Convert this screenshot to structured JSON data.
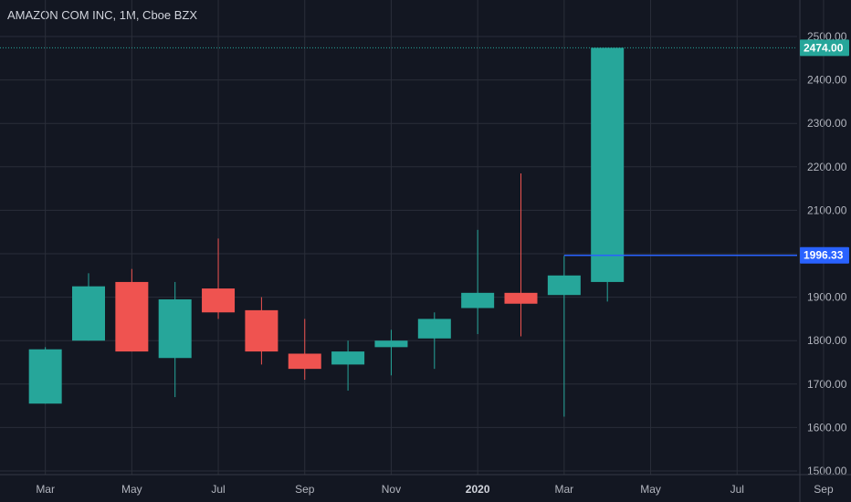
{
  "title": "AMAZON COM INC, 1M, Cboe BZX",
  "colors": {
    "background": "#131722",
    "grid": "#2a2e39",
    "up": "#26a69a",
    "down": "#ef5350",
    "hline": "#2962ff",
    "last_price": "#26a69a",
    "axis_text": "#b2b5be"
  },
  "chart_data": {
    "type": "candlestick",
    "title": "AMAZON COM INC, 1M, Cboe BZX",
    "y_ticks": [
      "1500.00",
      "1600.00",
      "1700.00",
      "1800.00",
      "1900.00",
      "2000.00",
      "2100.00",
      "2200.00",
      "2300.00",
      "2400.00",
      "2500.00"
    ],
    "ylim": [
      1500,
      2500
    ],
    "x_ticks": [
      "Mar",
      "May",
      "Jul",
      "Sep",
      "Nov",
      "2020",
      "Mar",
      "May",
      "Jul",
      "Sep"
    ],
    "grid": true,
    "candles": [
      {
        "month": "Mar 2019",
        "open": 1655,
        "high": 1785,
        "low": 1655,
        "close": 1780
      },
      {
        "month": "Apr 2019",
        "open": 1800,
        "high": 1955,
        "low": 1800,
        "close": 1925
      },
      {
        "month": "May 2019",
        "open": 1935,
        "high": 1965,
        "low": 1775,
        "close": 1775
      },
      {
        "month": "Jun 2019",
        "open": 1760,
        "high": 1935,
        "low": 1670,
        "close": 1895
      },
      {
        "month": "Jul 2019",
        "open": 1920,
        "high": 2035,
        "low": 1850,
        "close": 1865
      },
      {
        "month": "Aug 2019",
        "open": 1870,
        "high": 1900,
        "low": 1745,
        "close": 1775
      },
      {
        "month": "Sep 2019",
        "open": 1770,
        "high": 1850,
        "low": 1710,
        "close": 1735
      },
      {
        "month": "Oct 2019",
        "open": 1745,
        "high": 1800,
        "low": 1685,
        "close": 1775
      },
      {
        "month": "Nov 2019",
        "open": 1785,
        "high": 1825,
        "low": 1720,
        "close": 1800
      },
      {
        "month": "Dec 2019",
        "open": 1805,
        "high": 1865,
        "low": 1735,
        "close": 1850
      },
      {
        "month": "Jan 2020",
        "open": 1875,
        "high": 2055,
        "low": 1815,
        "close": 1910
      },
      {
        "month": "Feb 2020",
        "open": 1910,
        "high": 2185,
        "low": 1810,
        "close": 1885
      },
      {
        "month": "Mar 2020",
        "open": 1905,
        "high": 1995,
        "low": 1625,
        "close": 1950
      },
      {
        "month": "Apr 2020",
        "open": 1935,
        "high": 2474,
        "low": 1890,
        "close": 2474
      }
    ],
    "horizontal_line": {
      "value": 1996.33,
      "label": "1996.33"
    },
    "last_price": {
      "value": 2474.0,
      "label": "2474.00"
    }
  }
}
